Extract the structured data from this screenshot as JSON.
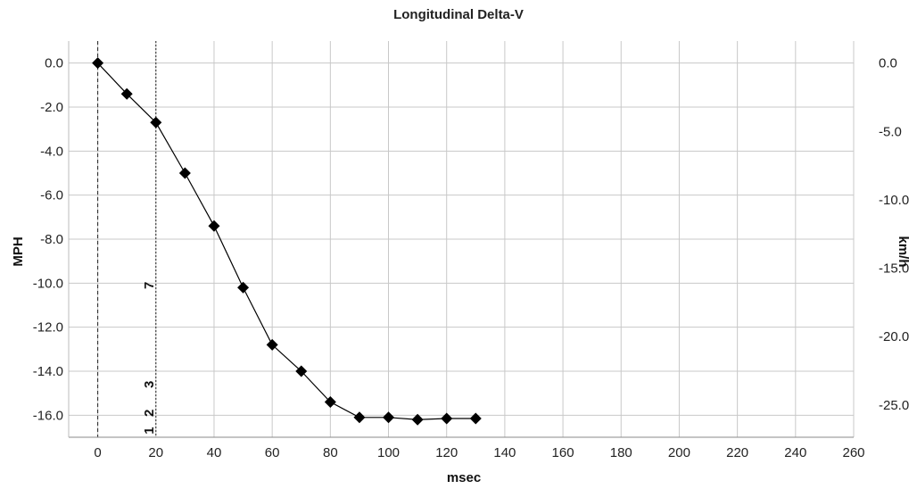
{
  "chart_data": {
    "type": "line",
    "title": "Longitudinal Delta-V",
    "xlabel": "msec",
    "ylabel": "MPH",
    "y2label": "km/h",
    "xlim": [
      -10,
      260
    ],
    "ylim": [
      -17,
      1
    ],
    "y2lim": [
      -27.36,
      1.61
    ],
    "grid": true,
    "x_ticks": [
      "0",
      "20",
      "40",
      "60",
      "80",
      "100",
      "120",
      "140",
      "160",
      "180",
      "200",
      "220",
      "240",
      "260"
    ],
    "y_ticks": [
      "0.0",
      "-2.0",
      "-4.0",
      "-6.0",
      "-8.0",
      "-10.0",
      "-12.0",
      "-14.0",
      "-16.0"
    ],
    "y2_ticks": [
      "0.0",
      "-5.0",
      "-10.0",
      "-15.0",
      "-20.0",
      "-25.0"
    ],
    "series": [
      {
        "x": [
          0,
          10,
          20,
          30,
          40,
          50,
          60,
          70,
          80,
          90,
          100,
          110,
          120,
          130
        ],
        "values": [
          0.0,
          -1.4,
          -2.7,
          -5.0,
          -7.4,
          -10.2,
          -12.8,
          -14.0,
          -15.4,
          -16.1,
          -16.1,
          -16.2,
          -16.15,
          -16.15
        ],
        "color": "#000000",
        "marker": "diamond"
      }
    ],
    "vertical_markers": [
      {
        "x": 0,
        "style": "dashed"
      },
      {
        "x": 20,
        "style": "dotted"
      }
    ],
    "annotations": [
      {
        "text": "1",
        "x": 20,
        "y": -16.7
      },
      {
        "text": "2",
        "x": 20,
        "y": -15.9
      },
      {
        "text": "3",
        "x": 20,
        "y": -14.6
      },
      {
        "text": "7",
        "x": 20,
        "y": -10.1
      }
    ]
  }
}
